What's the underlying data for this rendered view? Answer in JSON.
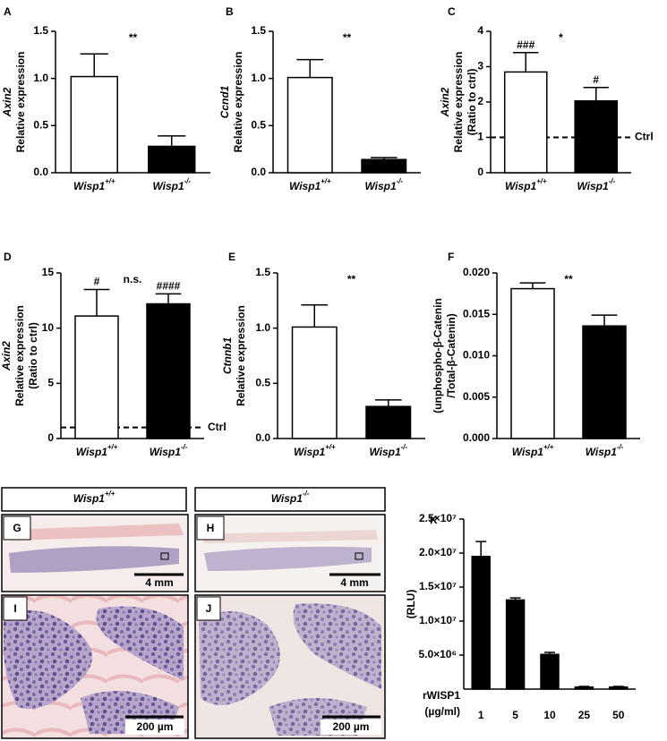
{
  "chart_data": [
    {
      "type": "bar",
      "label": "A",
      "ylabel": [
        "Axin2",
        "Relative expression"
      ],
      "ylabel_italic_first": true,
      "categories": [
        "Wisp1+/+",
        "Wisp1-/-"
      ],
      "category_italic": true,
      "values": [
        1.02,
        0.28
      ],
      "errors": [
        0.24,
        0.11
      ],
      "colors": [
        "#ffffff",
        "#000000"
      ],
      "ylim": [
        0,
        1.5
      ],
      "yticks": [
        {
          "value": 0,
          "label": "0.0"
        },
        0.5,
        {
          "value": 1,
          "label": "1.0"
        },
        1.5
      ],
      "significance": "**"
    },
    {
      "type": "bar",
      "label": "B",
      "ylabel": [
        "Ccnd1",
        "Relative expression"
      ],
      "ylabel_italic_first": true,
      "categories": [
        "Wisp1+/+",
        "Wisp1-/-"
      ],
      "category_italic": true,
      "values": [
        1.01,
        0.14
      ],
      "errors": [
        0.19,
        0.02
      ],
      "colors": [
        "#ffffff",
        "#000000"
      ],
      "ylim": [
        0,
        1.5
      ],
      "yticks": [
        {
          "value": 0,
          "label": "0.0"
        },
        0.5,
        {
          "value": 1,
          "label": "1.0"
        },
        1.5
      ],
      "significance": "**"
    },
    {
      "type": "bar",
      "label": "C",
      "ylabel": [
        "Axin2",
        "Relative expression",
        "(Ratio to ctrl)"
      ],
      "ylabel_italic_first": true,
      "categories": [
        "Wisp1+/+",
        "Wisp1-/-"
      ],
      "category_italic": true,
      "values": [
        2.85,
        2.03
      ],
      "errors": [
        0.55,
        0.38
      ],
      "colors": [
        "#ffffff",
        "#000000"
      ],
      "ylim": [
        0,
        4
      ],
      "yticks": [
        0,
        1,
        2,
        3,
        4
      ],
      "significance": "*",
      "bar_annotations": [
        "###",
        "#"
      ],
      "reference_line": {
        "value": 1,
        "label": "Ctrl"
      }
    },
    {
      "type": "bar",
      "label": "D",
      "ylabel": [
        "Axin2",
        "Relative expression",
        "(Ratio to ctrl)"
      ],
      "ylabel_italic_first": true,
      "categories": [
        "Wisp1+/+",
        "Wisp1-/-"
      ],
      "category_italic": true,
      "values": [
        11.1,
        12.2
      ],
      "errors": [
        2.4,
        0.9
      ],
      "colors": [
        "#ffffff",
        "#000000"
      ],
      "ylim": [
        0,
        15
      ],
      "yticks": [
        0,
        5,
        10,
        15
      ],
      "significance": "n.s.",
      "bar_annotations": [
        "#",
        "####"
      ],
      "reference_line": {
        "value": 1,
        "label": "Ctrl"
      }
    },
    {
      "type": "bar",
      "label": "E",
      "ylabel": [
        "Ctnnb1",
        "Relative expression"
      ],
      "ylabel_italic_first": true,
      "categories": [
        "Wisp1+/+",
        "Wisp1-/-"
      ],
      "category_italic": true,
      "values": [
        1.01,
        0.29
      ],
      "errors": [
        0.2,
        0.06
      ],
      "colors": [
        "#ffffff",
        "#000000"
      ],
      "ylim": [
        0,
        1.5
      ],
      "yticks": [
        {
          "value": 0,
          "label": "0.0"
        },
        0.5,
        {
          "value": 1,
          "label": "1.0"
        },
        1.5
      ],
      "significance": "**"
    },
    {
      "type": "bar",
      "label": "F",
      "ylabel": [
        "(unphospho-β-Catenin",
        "/Total-β-Catenin)"
      ],
      "ylabel_italic_first": false,
      "categories": [
        "Wisp1+/+",
        "Wisp1-/-"
      ],
      "category_italic": true,
      "values": [
        0.0181,
        0.0136
      ],
      "errors": [
        0.0007,
        0.0013
      ],
      "colors": [
        "#ffffff",
        "#000000"
      ],
      "ylim": [
        0,
        0.02
      ],
      "yticks": [
        {
          "value": 0,
          "label": "0.000"
        },
        0.005,
        {
          "value": 0.01,
          "label": "0.010"
        },
        0.015,
        {
          "value": 0.02,
          "label": "0.020"
        }
      ],
      "significance": "**"
    },
    {
      "type": "bar",
      "label": "K",
      "ylabel": [
        "(RLU)"
      ],
      "ylabel_italic_first": false,
      "xlabel": [
        "rWISP1",
        "(µg/ml)"
      ],
      "categories": [
        "1",
        "5",
        "10",
        "25",
        "50"
      ],
      "category_italic": false,
      "values": [
        19500000,
        13100000,
        5100000,
        300000,
        300000
      ],
      "errors": [
        2200000,
        300000,
        300000,
        100000,
        100000
      ],
      "color": "#000000",
      "ylim": [
        0,
        25000000
      ],
      "yticks": [
        {
          "value": 5000000,
          "label": "5.0×10⁶"
        },
        {
          "value": 10000000,
          "label": "1.0×10⁷"
        },
        {
          "value": 15000000,
          "label": "1.5×10⁷"
        },
        {
          "value": 20000000,
          "label": "2.0×10⁷"
        },
        {
          "value": 25000000,
          "label": "2.5×10⁷"
        }
      ]
    }
  ],
  "histology": {
    "headers": [
      "Wisp1+/+",
      "Wisp1-/-"
    ],
    "panels": [
      {
        "label": "G",
        "scale": "4 mm"
      },
      {
        "label": "H",
        "scale": "4 mm"
      },
      {
        "label": "I",
        "scale": "200 µm"
      },
      {
        "label": "J",
        "scale": "200 µm"
      }
    ]
  }
}
